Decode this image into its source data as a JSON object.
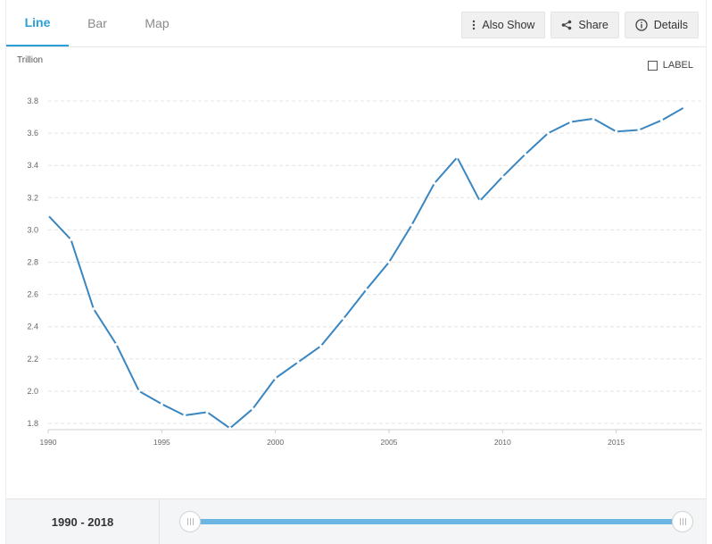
{
  "tabs": [
    {
      "label": "Line",
      "active": true
    },
    {
      "label": "Bar",
      "active": false
    },
    {
      "label": "Map",
      "active": false
    }
  ],
  "actions": {
    "also_show": "Also Show",
    "share": "Share",
    "details": "Details"
  },
  "label_toggle": "LABEL",
  "range_label": "1990 - 2018",
  "colors": {
    "accent": "#2a9fd6",
    "line": "#3a86c0",
    "slider": "#6cb6e3"
  },
  "chart_data": {
    "type": "line",
    "ylabel": "Trillion",
    "x_ticks": [
      1990,
      1995,
      2000,
      2005,
      2010,
      2015
    ],
    "y_ticks": [
      1.8,
      2.0,
      2.2,
      2.4,
      2.6,
      2.8,
      3.0,
      3.2,
      3.4,
      3.6,
      3.8
    ],
    "xlim": [
      1990,
      2018
    ],
    "ylim": [
      1.8,
      3.8
    ],
    "grid": true,
    "series": [
      {
        "x": [
          1990,
          1991,
          1992,
          1993,
          1994,
          1995,
          1996,
          1997,
          1998,
          1999,
          2000,
          2001,
          2002,
          2003,
          2004,
          2005,
          2006,
          2007,
          2008,
          2009,
          2010,
          2011,
          2012,
          2013,
          2014,
          2015,
          2016,
          2017,
          2018
        ],
        "values": [
          3.09,
          2.94,
          2.51,
          2.29,
          2.0,
          1.92,
          1.85,
          1.87,
          1.77,
          1.89,
          2.08,
          2.18,
          2.28,
          2.45,
          2.63,
          2.8,
          3.03,
          3.29,
          3.45,
          3.18,
          3.33,
          3.47,
          3.6,
          3.67,
          3.69,
          3.61,
          3.62,
          3.68,
          3.76
        ]
      }
    ]
  }
}
